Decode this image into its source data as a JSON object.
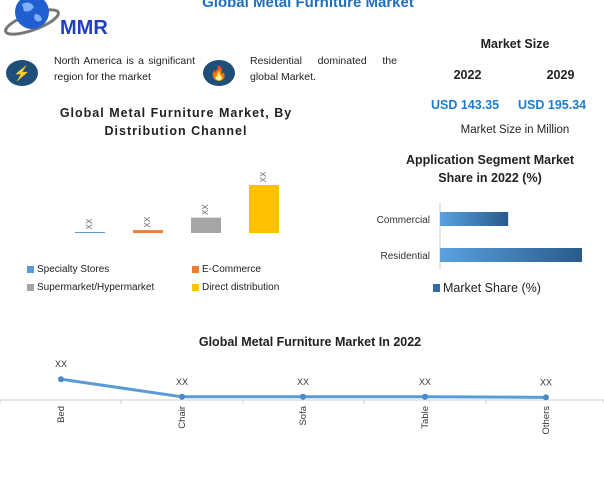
{
  "header": {
    "title": "Global Metal Furniture Market",
    "logo_text": "MMR"
  },
  "facts": [
    {
      "icon": "lightning-icon",
      "text": "North America is a significant region for the market"
    },
    {
      "icon": "flame-icon",
      "text": "Residential dominated the global Market."
    }
  ],
  "market_size": {
    "title": "Market Size",
    "years": [
      "2022",
      "2029"
    ],
    "values": [
      "USD 143.35",
      "USD 195.34"
    ],
    "unit": "Market Size in Million"
  },
  "colors": {
    "brand_blue": "#1f6fbf",
    "icon_navy": "#1f4e79",
    "specialty": "#5b9bd5",
    "ecommerce": "#ed7d31",
    "supermarket": "#a5a5a5",
    "direct": "#ffc000"
  },
  "chart_data": [
    {
      "type": "bar",
      "title": "Global Metal Furniture Market, By Distribution Channel",
      "categories": [
        "Specialty Stores",
        "E-Commerce",
        "Supermarket/Hypermarket",
        "Direct distribution"
      ],
      "values": [
        2,
        6,
        32,
        100
      ],
      "data_labels": [
        "XX",
        "XX",
        "XX",
        "XX"
      ],
      "legend": "bottom",
      "grid": false
    },
    {
      "type": "bar",
      "orientation": "horizontal",
      "title": "Application Segment Market Share in 2022 (%)",
      "categories": [
        "Commercial",
        "Residential"
      ],
      "series": [
        {
          "name": "Market Share (%)",
          "values": [
            48,
            100
          ]
        }
      ],
      "legend": "bottom",
      "grid": false
    },
    {
      "type": "line",
      "title": "Global Metal Furniture Market In 2022",
      "categories": [
        "Bed",
        "Chair",
        "Sofa",
        "Table",
        "Others"
      ],
      "values": [
        18,
        2,
        2,
        2,
        1.5
      ],
      "data_labels": [
        "XX",
        "XX",
        "XX",
        "XX",
        "XX"
      ],
      "grid": false
    }
  ]
}
